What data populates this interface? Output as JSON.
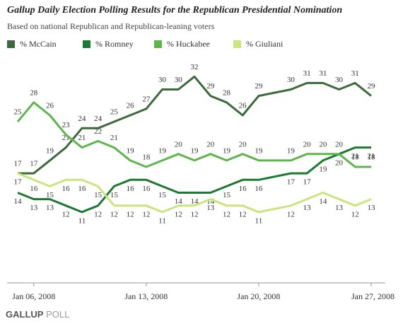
{
  "chart_data": {
    "type": "line",
    "title": "Gallup Daily Election Polling Results for the Republican Presidential Nomination",
    "subtitle": "Based on national Republican and Republican-leaning voters",
    "x": [
      "Jan 05, 2008",
      "Jan 06, 2008",
      "Jan 07, 2008",
      "Jan 08, 2008",
      "Jan 09, 2008",
      "Jan 10, 2008",
      "Jan 11, 2008",
      "Jan 12, 2008",
      "Jan 13, 2008",
      "Jan 14, 2008",
      "Jan 15, 2008",
      "Jan 16, 2008",
      "Jan 17, 2008",
      "Jan 18, 2008",
      "Jan 19, 2008",
      "Jan 20, 2008",
      "Jan 22, 2008",
      "Jan 23, 2008",
      "Jan 24, 2008",
      "Jan 25, 2008",
      "Jan 26, 2008",
      "Jan 27, 2008"
    ],
    "xlim": [
      "Jan 05, 2008",
      "Jan 27, 2008"
    ],
    "xticks": [
      {
        "value": "Jan 06, 2008",
        "label": "Jan 06, 2008"
      },
      {
        "value": "Jan 13, 2008",
        "label": "Jan 13, 2008"
      },
      {
        "value": "Jan 20, 2008",
        "label": "Jan 20, 2008"
      },
      {
        "value": "Jan 27, 2008",
        "label": "Jan 27, 2008"
      }
    ],
    "ylim": [
      2,
      34
    ],
    "series": [
      {
        "name": "% McCain",
        "color": "#3b6b3b",
        "values": [
          17,
          17,
          19,
          21,
          24,
          24,
          25,
          26,
          27,
          30,
          30,
          32,
          29,
          28,
          26,
          29,
          30,
          31,
          31,
          30,
          31,
          29
        ]
      },
      {
        "name": "% Romney",
        "color": "#1c7a30",
        "values": [
          14,
          13,
          13,
          12,
          11,
          12,
          15,
          16,
          16,
          15,
          14,
          14,
          14,
          15,
          16,
          16,
          17,
          17,
          19,
          20,
          21,
          21
        ]
      },
      {
        "name": "% Huckabee",
        "color": "#5cb749",
        "values": [
          25,
          28,
          26,
          23,
          21,
          22,
          21,
          19,
          18,
          19,
          20,
          19,
          20,
          19,
          20,
          19,
          19,
          20,
          20,
          20,
          18,
          18
        ]
      },
      {
        "name": "% Giuliani",
        "color": "#c9e67c",
        "values": [
          17,
          16,
          15,
          16,
          16,
          15,
          12,
          12,
          12,
          11,
          12,
          12,
          13,
          12,
          12,
          11,
          12,
          13,
          14,
          13,
          12,
          13
        ]
      }
    ],
    "source_brand": "GALLUP",
    "source_suffix": "POLL"
  }
}
